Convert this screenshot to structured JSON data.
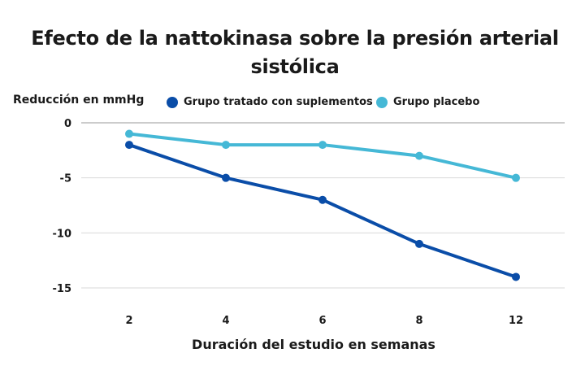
{
  "chart_data": {
    "type": "line",
    "title": "Efecto de la nattokinasa sobre la presión arterial sistólica",
    "ylabel": "Reducción en mmHg",
    "xlabel": "Duración del estudio en semanas",
    "categories": [
      "2",
      "4",
      "6",
      "8",
      "12"
    ],
    "ylim": [
      -15,
      0
    ],
    "yticks": [
      0,
      -5,
      -10,
      -15
    ],
    "grid": true,
    "legend_position": "top",
    "series": [
      {
        "name": "Grupo tratado con suplementos",
        "color": "#0a4da8",
        "values": [
          -2,
          -5,
          -7,
          -11,
          -14
        ]
      },
      {
        "name": "Grupo placebo",
        "color": "#45b8d6",
        "values": [
          -1,
          -2,
          -2,
          -3,
          -5
        ]
      }
    ]
  }
}
